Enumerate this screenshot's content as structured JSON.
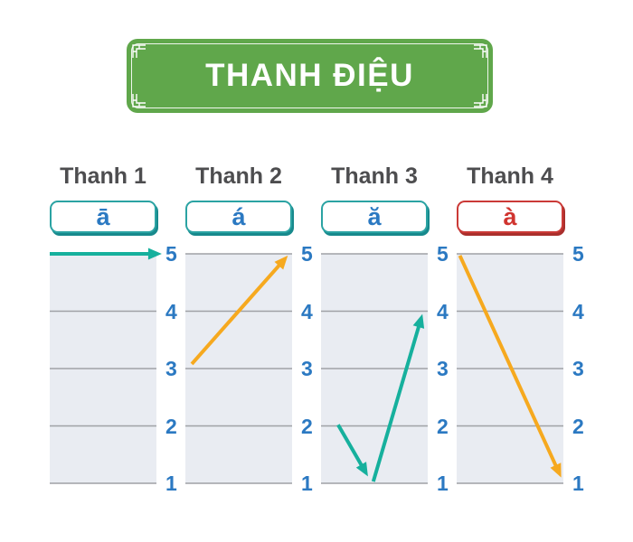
{
  "banner": {
    "title": "THANH ĐIỆU",
    "ornament": "chinese-knot-corner"
  },
  "colors": {
    "banner_green": "#60a74b",
    "banner_text": "#ffffff",
    "heading_text": "#4d4d4f",
    "pitch_number_blue": "#2b79c2",
    "teal_arrow": "#16b09d",
    "orange_arrow": "#f6a91f",
    "grid_background": "#e9ecf2",
    "grid_line": "#9fa1a6"
  },
  "chart_data": [
    {
      "type": "line",
      "title": "Thanh 1",
      "tone_mark": "ā",
      "tone_mark_color": "#2b79c2",
      "button_border_color": "#2ba3a3",
      "button_shadow_color": "#17898c",
      "line_color": "#16b09d",
      "ylim": [
        1,
        5
      ],
      "yticks": [
        5,
        4,
        3,
        2,
        1
      ],
      "segments": [
        {
          "points": [
            [
              0.0,
              5.0
            ],
            [
              1.05,
              5.0
            ]
          ],
          "arrow_end": true
        }
      ]
    },
    {
      "type": "line",
      "title": "Thanh 2",
      "tone_mark": "á",
      "tone_mark_color": "#2b79c2",
      "button_border_color": "#2ba3a3",
      "button_shadow_color": "#17898c",
      "line_color": "#f6a91f",
      "ylim": [
        1,
        5
      ],
      "yticks": [
        5,
        4,
        3,
        2,
        1
      ],
      "segments": [
        {
          "points": [
            [
              0.06,
              3.08
            ],
            [
              0.96,
              4.97
            ]
          ],
          "arrow_end": true
        }
      ]
    },
    {
      "type": "line",
      "title": "Thanh 3",
      "tone_mark": "ă",
      "tone_mark_color": "#2b79c2",
      "button_border_color": "#2ba3a3",
      "button_shadow_color": "#17898c",
      "line_color": "#16b09d",
      "ylim": [
        1,
        5
      ],
      "yticks": [
        5,
        4,
        3,
        2,
        1
      ],
      "segments": [
        {
          "points": [
            [
              0.16,
              2.02
            ],
            [
              0.44,
              1.12
            ]
          ],
          "arrow_end": true
        },
        {
          "points": [
            [
              0.49,
              1.03
            ],
            [
              0.95,
              3.95
            ]
          ],
          "arrow_end": true
        }
      ]
    },
    {
      "type": "line",
      "title": "Thanh 4",
      "tone_mark": "à",
      "tone_mark_color": "#d0342f",
      "button_border_color": "#cb3a37",
      "button_shadow_color": "#a92f2c",
      "line_color": "#f6a91f",
      "ylim": [
        1,
        5
      ],
      "yticks": [
        5,
        4,
        3,
        2,
        1
      ],
      "segments": [
        {
          "points": [
            [
              0.03,
              4.97
            ],
            [
              0.98,
              1.1
            ]
          ],
          "arrow_end": true
        }
      ]
    }
  ]
}
